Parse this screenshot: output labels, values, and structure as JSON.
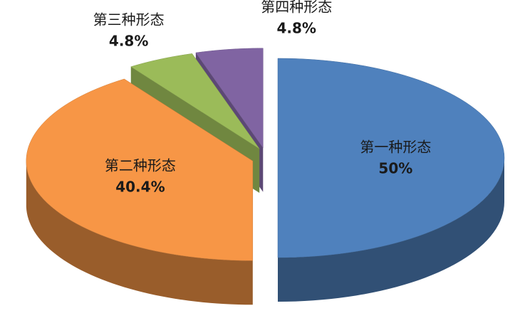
{
  "chart_data": {
    "type": "pie",
    "categories": [
      "第一种形态",
      "第二种形态",
      "第三种形态",
      "第四种形态"
    ],
    "values": [
      50,
      40.4,
      4.8,
      4.8
    ],
    "value_labels": [
      "50%",
      "40.4%",
      "4.8%",
      "4.8%"
    ],
    "colors": [
      "#4f81bd",
      "#f79646",
      "#9bbb59",
      "#8064a2"
    ]
  }
}
